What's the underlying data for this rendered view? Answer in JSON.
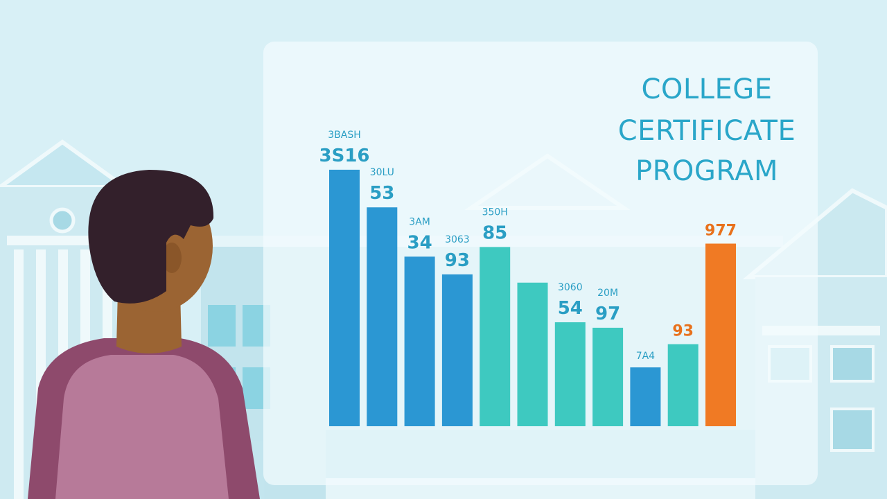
{
  "chart_data": {
    "type": "bar",
    "title_lines": [
      "COLLEGE",
      "CERTIFICATE",
      "PROGRAM"
    ],
    "ylim": [
      0,
      380
    ],
    "bars": [
      {
        "value": 375,
        "color": "#2b97d3",
        "labels": [
          {
            "text": "3BASH",
            "size": "small"
          },
          {
            "text": "3S16",
            "size": "large"
          }
        ]
      },
      {
        "value": 320,
        "color": "#2b97d3",
        "labels": [
          {
            "text": "30LU",
            "size": "small"
          },
          {
            "text": "53",
            "size": "large"
          }
        ]
      },
      {
        "value": 248,
        "color": "#2b97d3",
        "labels": [
          {
            "text": "3AM",
            "size": "small"
          },
          {
            "text": "34",
            "size": "large"
          }
        ]
      },
      {
        "value": 222,
        "color": "#2b97d3",
        "labels": [
          {
            "text": "3063",
            "size": "small"
          },
          {
            "text": "93",
            "size": "large"
          }
        ]
      },
      {
        "value": 262,
        "color": "#3ec9c0",
        "labels": [
          {
            "text": "350H",
            "size": "small"
          },
          {
            "text": "85",
            "size": "large"
          }
        ]
      },
      {
        "value": 210,
        "color": "#3ec9c0",
        "labels": []
      },
      {
        "value": 152,
        "color": "#3ec9c0",
        "labels": [
          {
            "text": "3060",
            "size": "small"
          },
          {
            "text": "54",
            "size": "large"
          }
        ]
      },
      {
        "value": 144,
        "color": "#3ec9c0",
        "labels": [
          {
            "text": "20M",
            "size": "small"
          },
          {
            "text": "97",
            "size": "large"
          }
        ]
      },
      {
        "value": 86,
        "color": "#2b97d3",
        "labels": [
          {
            "text": "7A4",
            "size": "small"
          }
        ]
      },
      {
        "value": 120,
        "color": "#3ec9c0",
        "labels": [
          {
            "text": "93",
            "size": "orange"
          }
        ]
      },
      {
        "value": 267,
        "color": "#f07a24",
        "labels": [
          {
            "text": "977",
            "size": "orange"
          }
        ]
      }
    ]
  },
  "colors": {
    "background": "#d8f0f6",
    "panel": "#f2fbfd",
    "title": "#2aa6c9",
    "label_blue": "#2a9ec4",
    "label_orange": "#e8711c",
    "shirt": "#8e4a6c",
    "vest": "#b77a99",
    "skin": "#9b6433",
    "hair": "#33202b"
  },
  "icons": [
    "person-figure",
    "college-building-icon"
  ]
}
